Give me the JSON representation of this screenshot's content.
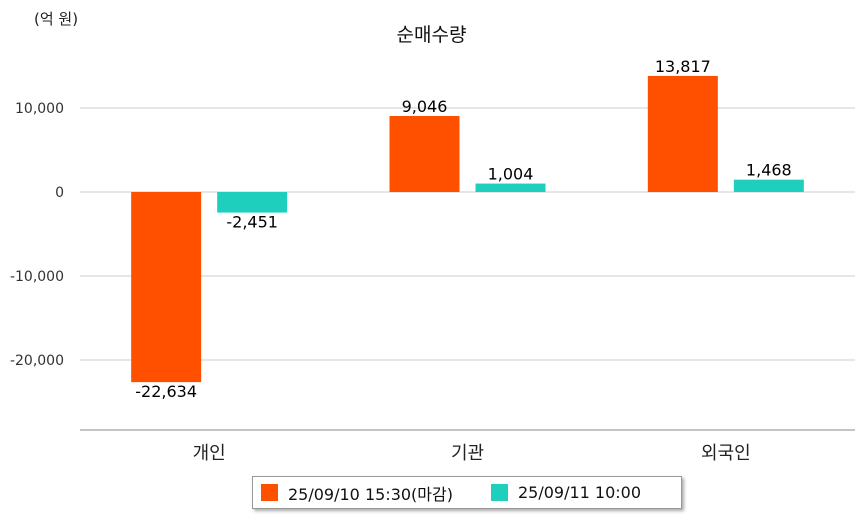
{
  "unit_label": "(억 원)",
  "chart_data": {
    "type": "bar",
    "title": "순매수량",
    "categories": [
      "개인",
      "기관",
      "외국인"
    ],
    "series": [
      {
        "name": "25/09/10 15:30(마감)",
        "color": "#ff5000",
        "values": [
          -22634,
          9046,
          13817
        ]
      },
      {
        "name": "25/09/11 10:00",
        "color": "#1ecfbd",
        "values": [
          -2451,
          1004,
          1468
        ]
      }
    ],
    "data_labels": [
      [
        "-22,634",
        "9,046",
        "13,817"
      ],
      [
        "-2,451",
        "1,004",
        "1,468"
      ]
    ],
    "yticks": [
      10000,
      0,
      -10000,
      -20000
    ],
    "ytick_labels": [
      "10,000",
      "0",
      "-10,000",
      "-20,000"
    ],
    "ylim": [
      -28000,
      19000
    ],
    "grid": true,
    "legend_position": "bottom"
  }
}
